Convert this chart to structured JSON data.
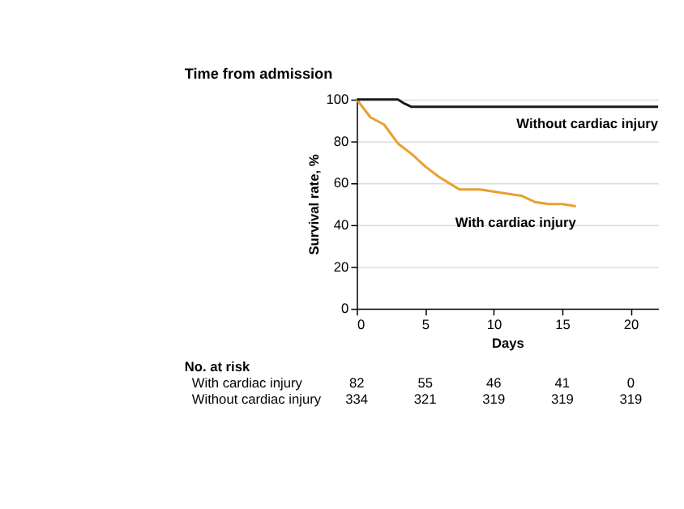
{
  "chart_data": {
    "type": "line",
    "title": "Time from admission",
    "xlabel": "Days",
    "ylabel": "Survival rate, %",
    "xlim": [
      0,
      22
    ],
    "xticks": [
      0,
      5,
      10,
      15,
      20
    ],
    "ylim": [
      0,
      100
    ],
    "yticks": [
      0,
      20,
      40,
      60,
      80,
      100
    ],
    "grid": "y",
    "legend": false,
    "marker": "none",
    "line_style": "solid",
    "series": [
      {
        "name": "With cardiac injury",
        "color": "#e8a030",
        "x": [
          0,
          1,
          2,
          3,
          4,
          5,
          6,
          7,
          7.5,
          9,
          11,
          12,
          13,
          14,
          15,
          16
        ],
        "values": [
          100,
          91.5,
          88,
          79,
          74,
          68,
          63,
          59,
          57,
          57,
          55,
          54,
          51,
          50,
          50,
          49
        ]
      },
      {
        "name": "Without cardiac injury",
        "color": "#1a1a1a",
        "x": [
          0,
          3,
          3.5,
          4,
          22
        ],
        "values": [
          100,
          100,
          98,
          96.5,
          96.5
        ]
      }
    ],
    "annotations": [
      "No. at risk",
      "With cardiac injury",
      "Without cardiac injury",
      "82",
      "55",
      "46",
      "41",
      "0",
      "334",
      "321",
      "319",
      "319",
      "319"
    ]
  }
}
